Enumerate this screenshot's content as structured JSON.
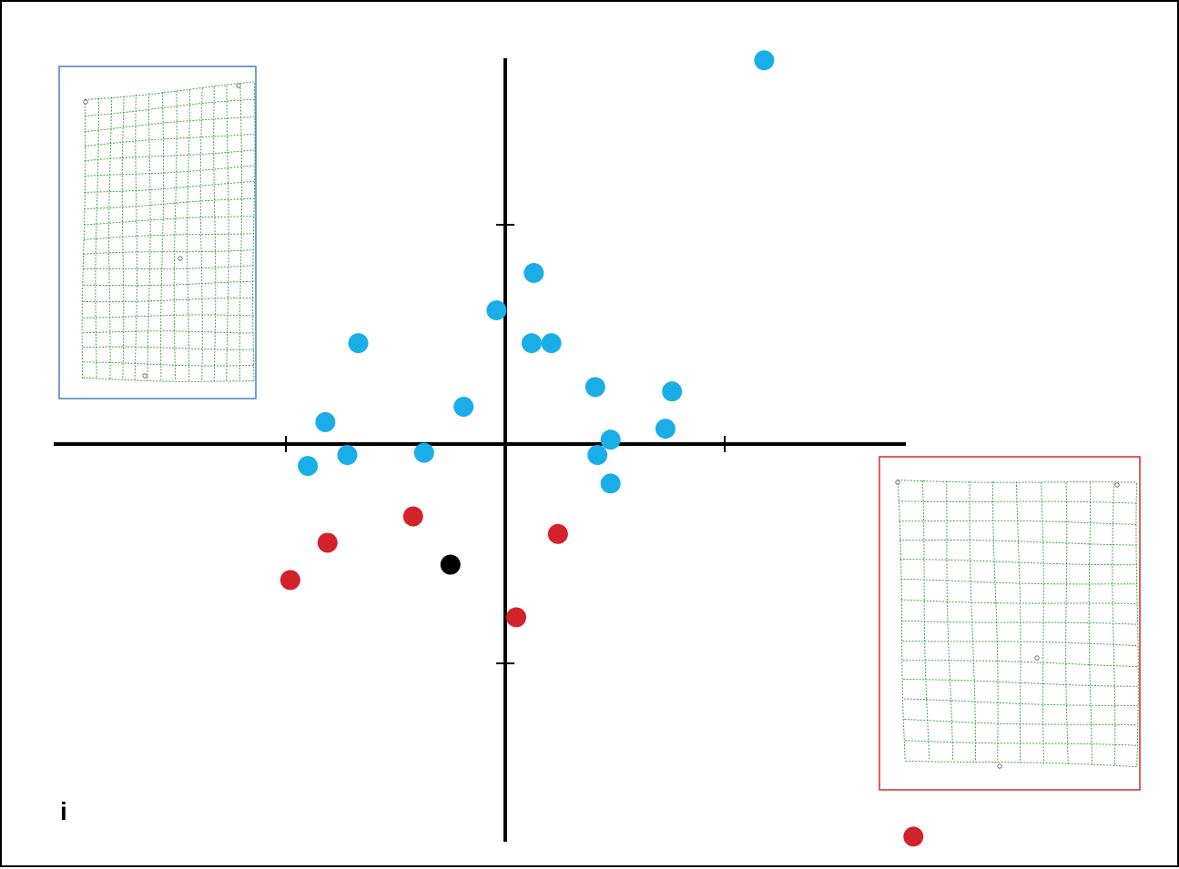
{
  "panel_label": "i",
  "chart_data": {
    "type": "scatter",
    "title": "",
    "xlabel": "",
    "ylabel": "",
    "xlim": [
      -2.05,
      1.85
    ],
    "ylim": [
      -1.8,
      1.75
    ],
    "x_ticks": [
      -1,
      1
    ],
    "y_ticks": [
      -1,
      1
    ],
    "grid": false,
    "legend": false,
    "tick_labels_shown": false,
    "series": [
      {
        "color": "#19aee8",
        "points": [
          [
            1.18,
            1.75
          ],
          [
            0.13,
            0.78
          ],
          [
            -0.04,
            0.61
          ],
          [
            0.12,
            0.46
          ],
          [
            0.21,
            0.46
          ],
          [
            -0.67,
            0.46
          ],
          [
            0.41,
            0.26
          ],
          [
            0.76,
            0.24
          ],
          [
            -0.19,
            0.17
          ],
          [
            -0.82,
            0.1
          ],
          [
            0.73,
            0.07
          ],
          [
            0.48,
            0.02
          ],
          [
            -0.72,
            -0.05
          ],
          [
            -0.37,
            -0.04
          ],
          [
            0.42,
            -0.05
          ],
          [
            -0.9,
            -0.1
          ],
          [
            0.48,
            -0.18
          ]
        ]
      },
      {
        "color": "#d3232a",
        "points": [
          [
            -0.42,
            -0.33
          ],
          [
            -0.81,
            -0.45
          ],
          [
            0.24,
            -0.41
          ],
          [
            -0.98,
            -0.62
          ],
          [
            0.05,
            -0.79
          ],
          [
            1.86,
            -1.79
          ]
        ]
      },
      {
        "color": "#000000",
        "points": [
          [
            -0.25,
            -0.55
          ]
        ]
      }
    ],
    "insets": [
      {
        "position": "top-left",
        "frame_color": "#4b7fc0",
        "grid_color": "#2f9a2f"
      },
      {
        "position": "bottom-right",
        "frame_color": "#d42a2a",
        "grid_color": "#2f9a2f"
      }
    ]
  }
}
